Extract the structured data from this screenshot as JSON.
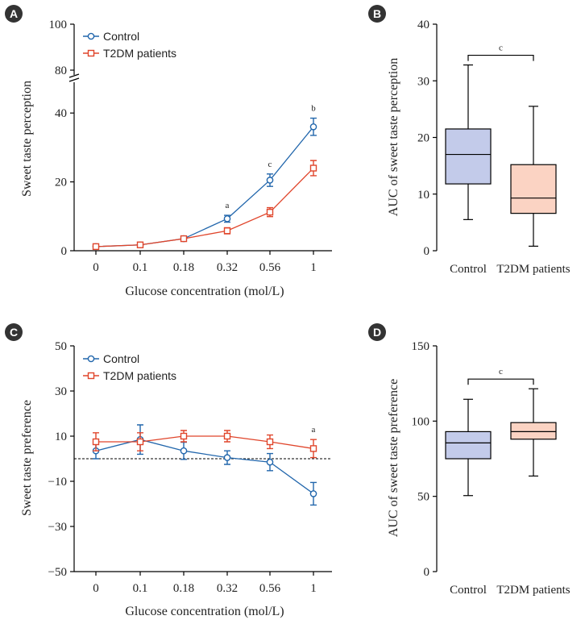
{
  "colors": {
    "control": "#2166ac",
    "t2dm": "#e0452b",
    "control_box": "#c3cbea",
    "t2dm_box": "#fbd3c3",
    "panel_badge": "#333333"
  },
  "chart_data": [
    {
      "panel": "A",
      "type": "line",
      "xlabel": "Glucose concentration (mol/L)",
      "ylabel": "Sweet taste perception",
      "categories": [
        "0",
        "0.1",
        "0.18",
        "0.32",
        "0.56",
        "1"
      ],
      "yticks_lower": [
        "0",
        "20",
        "40"
      ],
      "yticks_upper": [
        "80",
        "100"
      ],
      "ylim_lower": [
        0,
        45
      ],
      "ylim_upper": [
        80,
        100
      ],
      "axis_break": true,
      "legend": "top-left",
      "series": [
        {
          "name": "Control",
          "marker": "circle",
          "values": [
            1.2,
            1.7,
            3.5,
            9.3,
            20.5,
            36.0
          ],
          "errors": [
            0.6,
            0.6,
            0.7,
            1.0,
            1.8,
            2.5
          ]
        },
        {
          "name": "T2DM patients",
          "marker": "square",
          "values": [
            1.2,
            1.7,
            3.5,
            5.8,
            11.2,
            24.0
          ],
          "errors": [
            0.6,
            0.6,
            0.6,
            0.9,
            1.3,
            2.2
          ]
        }
      ],
      "annotations": [
        {
          "category": "0.32",
          "label": "a"
        },
        {
          "category": "0.56",
          "label": "c"
        },
        {
          "category": "1",
          "label": "b"
        }
      ]
    },
    {
      "panel": "B",
      "type": "box",
      "ylabel": "AUC of  sweet taste perception",
      "categories": [
        "Control",
        "T2DM patients"
      ],
      "yticks": [
        "0",
        "10",
        "20",
        "30",
        "40"
      ],
      "ylim": [
        0,
        40
      ],
      "boxes": [
        {
          "name": "Control",
          "min": 5.5,
          "q1": 11.8,
          "median": 17.0,
          "q3": 21.5,
          "max": 32.8
        },
        {
          "name": "T2DM patients",
          "min": 0.8,
          "q1": 6.6,
          "median": 9.3,
          "q3": 15.2,
          "max": 25.5
        }
      ],
      "significance": "c"
    },
    {
      "panel": "C",
      "type": "line",
      "xlabel": "Glucose concentration (mol/L)",
      "ylabel": "Sweet taste preference",
      "categories": [
        "0",
        "0.1",
        "0.18",
        "0.32",
        "0.56",
        "1"
      ],
      "yticks": [
        "50",
        "30",
        "10",
        "−10",
        "−30",
        "−50"
      ],
      "ylim": [
        -50,
        50
      ],
      "reference_line": 0,
      "legend": "top-left",
      "series": [
        {
          "name": "Control",
          "marker": "circle",
          "values": [
            3.5,
            8.5,
            3.5,
            0.5,
            -1.5,
            -15.5
          ],
          "errors": [
            3.5,
            6.5,
            3.8,
            3.0,
            3.8,
            5.0
          ]
        },
        {
          "name": "T2DM patients",
          "marker": "square",
          "values": [
            7.5,
            7.5,
            10.0,
            10.0,
            7.5,
            4.5
          ],
          "errors": [
            4.0,
            4.0,
            2.5,
            2.5,
            3.0,
            4.0
          ]
        }
      ],
      "annotations": [
        {
          "category": "1",
          "label": "a"
        }
      ]
    },
    {
      "panel": "D",
      "type": "box",
      "ylabel": "AUC of  sweet taste preference",
      "categories": [
        "Control",
        "T2DM patients"
      ],
      "yticks": [
        "0",
        "50",
        "100",
        "150"
      ],
      "ylim": [
        0,
        150
      ],
      "boxes": [
        {
          "name": "Control",
          "min": 50.5,
          "q1": 75.0,
          "median": 85.5,
          "q3": 93.0,
          "max": 114.5
        },
        {
          "name": "T2DM patients",
          "min": 63.5,
          "q1": 88.0,
          "median": 93.0,
          "q3": 99.0,
          "max": 121.5
        }
      ],
      "significance": "c"
    }
  ]
}
